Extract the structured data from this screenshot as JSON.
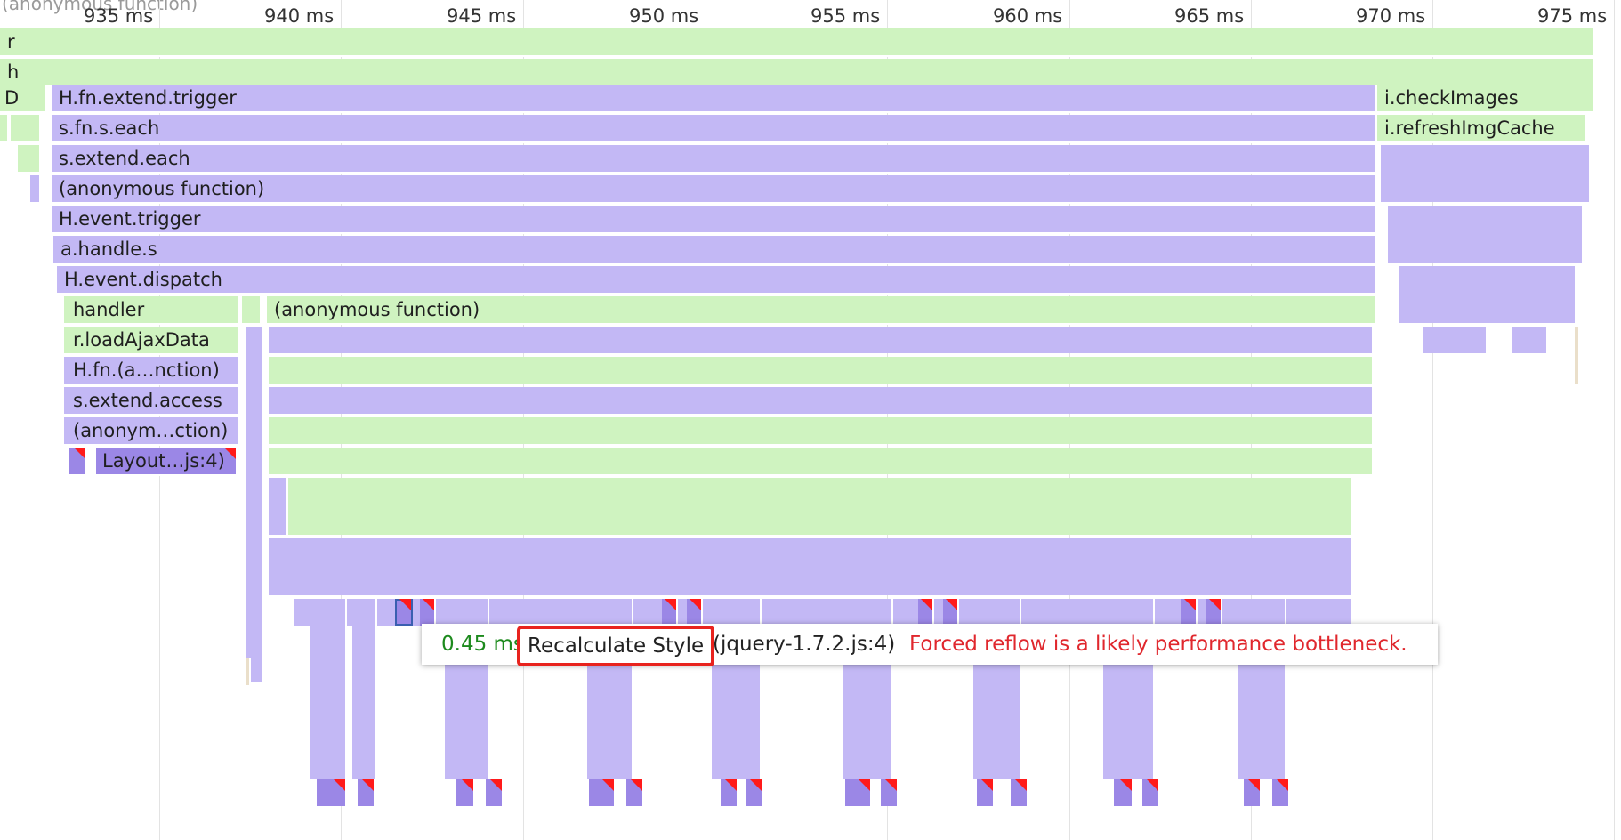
{
  "ruler": {
    "ticks": [
      "935 ms",
      "940 ms",
      "945 ms",
      "950 ms",
      "955 ms",
      "960 ms",
      "965 ms",
      "970 ms",
      "975 ms"
    ],
    "truncated_top_label": "(anonymous function)"
  },
  "frames": {
    "r": "r",
    "h": "h",
    "d": "D",
    "extend_trigger": "H.fn.extend.trigger",
    "check_images": "i.checkImages",
    "s_each": "s.fn.s.each",
    "refresh_img_cache": "i.refreshImgCache",
    "extend_each": "s.extend.each",
    "anon_function": "(anonymous function)",
    "event_trigger": "H.event.trigger",
    "handle_s": "a.handle.s",
    "event_dispatch": "H.event.dispatch",
    "handler": "handler",
    "anon_function_2": "(anonymous function)",
    "load_ajax_data": "r.loadAjaxData",
    "fn_anon": "H.fn.(a…nction)",
    "extend_access": "s.extend.access",
    "anon_truncated": "(anonym…ction)",
    "layout": "Layout…js:4)"
  },
  "tooltip": {
    "duration": "0.45 ms",
    "event_name": "Recalculate Style",
    "location": "(jquery-1.7.2.js:4)",
    "warning": "Forced reflow is a likely performance bottleneck."
  },
  "colors": {
    "script_green": "#cff3c0",
    "script_purple": "#c3b8f5",
    "layout_purple": "#9b87e6",
    "warning_red": "#e0272d",
    "duration_green": "#1d8a1d",
    "highlight_red": "#e8231e"
  }
}
